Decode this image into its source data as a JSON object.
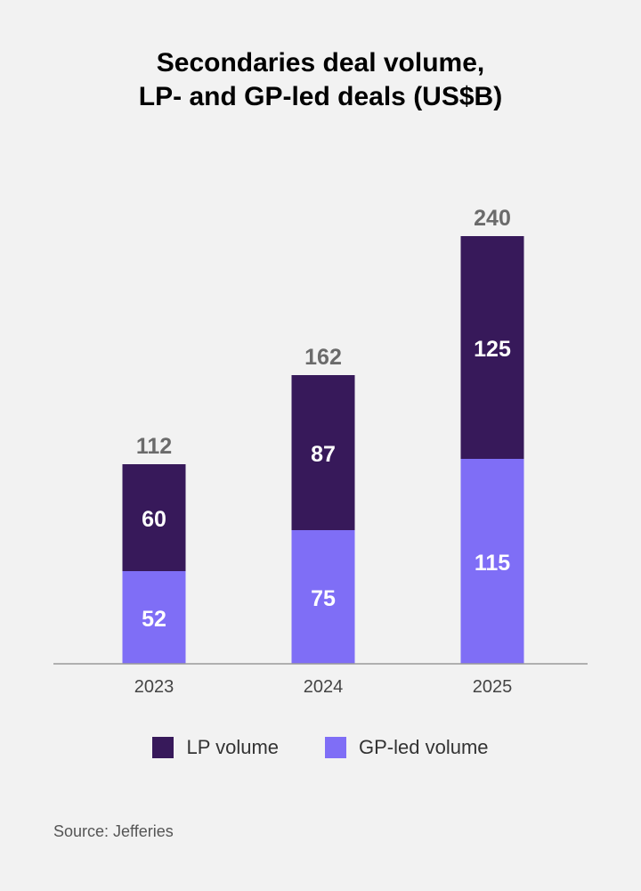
{
  "chart_data": {
    "type": "bar",
    "stacked": true,
    "title_lines": [
      "Secondaries deal volume,",
      "LP- and GP-led deals (US$B)"
    ],
    "categories": [
      "2023",
      "2024",
      "2025"
    ],
    "series": [
      {
        "name": "GP-led volume",
        "values": [
          52,
          75,
          115
        ],
        "color": "#7f6ef6"
      },
      {
        "name": "LP volume",
        "values": [
          60,
          87,
          125
        ],
        "color": "#37195a"
      }
    ],
    "totals": [
      "112",
      "162",
      "240"
    ],
    "ylim": [
      0,
      240
    ],
    "grid": false,
    "legend": [
      {
        "label": "LP volume",
        "color": "#37195a"
      },
      {
        "label": "GP-led volume",
        "color": "#7f6ef6"
      }
    ],
    "legend_position": "bottom",
    "source": "Source: Jefferies"
  }
}
